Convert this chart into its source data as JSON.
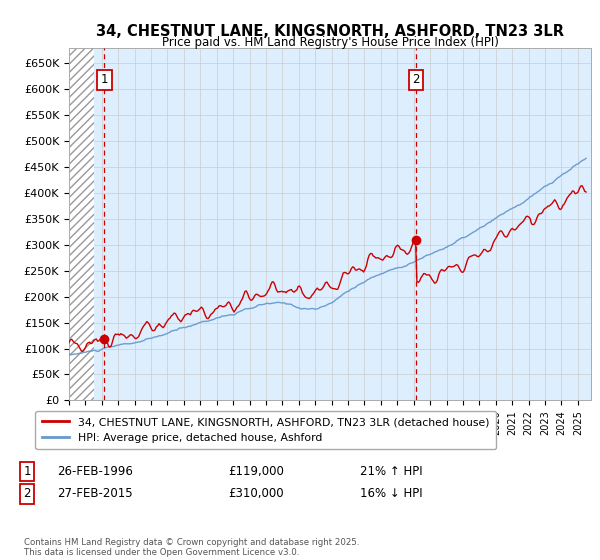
{
  "title_line1": "34, CHESTNUT LANE, KINGSNORTH, ASHFORD, TN23 3LR",
  "title_line2": "Price paid vs. HM Land Registry's House Price Index (HPI)",
  "ylim": [
    0,
    680000
  ],
  "xlim_start": 1994.0,
  "xlim_end": 2025.8,
  "yticks": [
    0,
    50000,
    100000,
    150000,
    200000,
    250000,
    300000,
    350000,
    400000,
    450000,
    500000,
    550000,
    600000,
    650000
  ],
  "ytick_labels": [
    "£0",
    "£50K",
    "£100K",
    "£150K",
    "£200K",
    "£250K",
    "£300K",
    "£350K",
    "£400K",
    "£450K",
    "£500K",
    "£550K",
    "£600K",
    "£650K"
  ],
  "hatch_region_end": 1995.5,
  "sale1_x": 1996.15,
  "sale1_y": 119000,
  "sale1_label": "1",
  "sale1_date": "26-FEB-1996",
  "sale1_price": "£119,000",
  "sale1_hpi": "21% ↑ HPI",
  "sale2_x": 2015.15,
  "sale2_y": 310000,
  "sale2_label": "2",
  "sale2_date": "27-FEB-2015",
  "sale2_price": "£310,000",
  "sale2_hpi": "16% ↓ HPI",
  "red_line_color": "#cc0000",
  "blue_line_color": "#6699cc",
  "marker_color": "#cc0000",
  "vline_color": "#cc0000",
  "grid_color": "#cccccc",
  "bg_color": "#ddeeff",
  "legend_label_red": "34, CHESTNUT LANE, KINGSNORTH, ASHFORD, TN23 3LR (detached house)",
  "legend_label_blue": "HPI: Average price, detached house, Ashford",
  "footer_text": "Contains HM Land Registry data © Crown copyright and database right 2025.\nThis data is licensed under the Open Government Licence v3.0.",
  "fig_width": 6.0,
  "fig_height": 5.6,
  "dpi": 100
}
